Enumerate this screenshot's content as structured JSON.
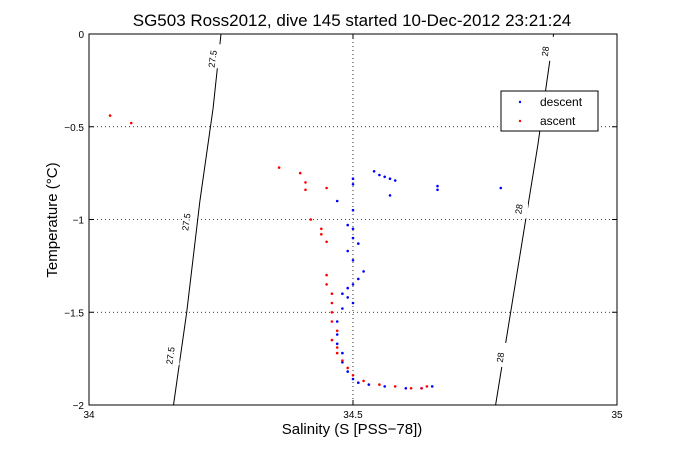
{
  "chart_data": {
    "type": "scatter",
    "title": "SG503 Ross2012, dive 145 started 10-Dec-2012 23:21:24",
    "xlabel": "Salinity (S [PSS−78])",
    "ylabel": "Temperature (°C)",
    "xlim": [
      34,
      35
    ],
    "ylim": [
      -2,
      0
    ],
    "x_ticks": [
      34,
      34.5,
      35
    ],
    "x_tick_labels": [
      "34",
      "34.5",
      "35"
    ],
    "y_ticks": [
      0,
      -0.5,
      -1,
      -1.5,
      -2
    ],
    "y_tick_labels": [
      "0",
      "−0.5",
      "−1",
      "−1.5",
      "−2"
    ],
    "grid": true,
    "legend": {
      "placement": "top-right",
      "entries": [
        "descent",
        "ascent"
      ]
    },
    "isopycnals": [
      {
        "label": "27.5",
        "label_positions": [
          [
            34.24,
            -0.12
          ],
          [
            34.19,
            -1.0
          ],
          [
            34.16,
            -1.72
          ]
        ],
        "points": [
          [
            34.16,
            -2.0
          ],
          [
            34.185,
            -1.5
          ],
          [
            34.21,
            -0.9
          ],
          [
            34.235,
            -0.4
          ],
          [
            34.25,
            0.0
          ]
        ]
      },
      {
        "label": "28",
        "label_positions": [
          [
            34.87,
            -0.08
          ],
          [
            34.82,
            -0.93
          ],
          [
            34.785,
            -1.73
          ]
        ],
        "points": [
          [
            34.77,
            -2.0
          ],
          [
            34.81,
            -1.3
          ],
          [
            34.85,
            -0.6
          ],
          [
            34.88,
            0.0
          ]
        ]
      }
    ],
    "series": [
      {
        "name": "descent",
        "color": "#0000ff",
        "points": [
          [
            34.5,
            -0.78
          ],
          [
            34.5,
            -0.81
          ],
          [
            34.54,
            -0.74
          ],
          [
            34.55,
            -0.76
          ],
          [
            34.56,
            -0.77
          ],
          [
            34.57,
            -0.78
          ],
          [
            34.58,
            -0.79
          ],
          [
            34.57,
            -0.87
          ],
          [
            34.66,
            -0.82
          ],
          [
            34.66,
            -0.84
          ],
          [
            34.78,
            -0.83
          ],
          [
            34.47,
            -0.9
          ],
          [
            34.5,
            -0.95
          ],
          [
            34.49,
            -1.03
          ],
          [
            34.5,
            -1.05
          ],
          [
            34.5,
            -1.1
          ],
          [
            34.51,
            -1.13
          ],
          [
            34.49,
            -1.17
          ],
          [
            34.5,
            -1.22
          ],
          [
            34.52,
            -1.28
          ],
          [
            34.51,
            -1.32
          ],
          [
            34.5,
            -1.35
          ],
          [
            34.49,
            -1.37
          ],
          [
            34.48,
            -1.4
          ],
          [
            34.49,
            -1.42
          ],
          [
            34.5,
            -1.45
          ],
          [
            34.48,
            -1.48
          ],
          [
            34.47,
            -1.55
          ],
          [
            34.47,
            -1.62
          ],
          [
            34.47,
            -1.67
          ],
          [
            34.48,
            -1.72
          ],
          [
            34.48,
            -1.77
          ],
          [
            34.49,
            -1.82
          ],
          [
            34.5,
            -1.86
          ],
          [
            34.51,
            -1.88
          ],
          [
            34.53,
            -1.89
          ],
          [
            34.56,
            -1.9
          ],
          [
            34.6,
            -1.91
          ],
          [
            34.63,
            -1.91
          ],
          [
            34.65,
            -1.9
          ]
        ]
      },
      {
        "name": "ascent",
        "color": "#ff0000",
        "points": [
          [
            34.04,
            -0.44
          ],
          [
            34.08,
            -0.48
          ],
          [
            34.36,
            -0.72
          ],
          [
            34.4,
            -0.75
          ],
          [
            34.41,
            -0.8
          ],
          [
            34.41,
            -0.84
          ],
          [
            34.45,
            -0.83
          ],
          [
            34.42,
            -1.0
          ],
          [
            34.44,
            -1.05
          ],
          [
            34.44,
            -1.08
          ],
          [
            34.45,
            -1.12
          ],
          [
            34.45,
            -1.3
          ],
          [
            34.45,
            -1.35
          ],
          [
            34.46,
            -1.4
          ],
          [
            34.46,
            -1.45
          ],
          [
            34.46,
            -1.5
          ],
          [
            34.46,
            -1.55
          ],
          [
            34.47,
            -1.6
          ],
          [
            34.46,
            -1.65
          ],
          [
            34.47,
            -1.69
          ],
          [
            34.47,
            -1.72
          ],
          [
            34.48,
            -1.76
          ],
          [
            34.49,
            -1.8
          ],
          [
            34.5,
            -1.84
          ],
          [
            34.52,
            -1.87
          ],
          [
            34.55,
            -1.89
          ],
          [
            34.58,
            -1.9
          ],
          [
            34.61,
            -1.91
          ],
          [
            34.63,
            -1.91
          ],
          [
            34.64,
            -1.9
          ]
        ]
      }
    ]
  }
}
